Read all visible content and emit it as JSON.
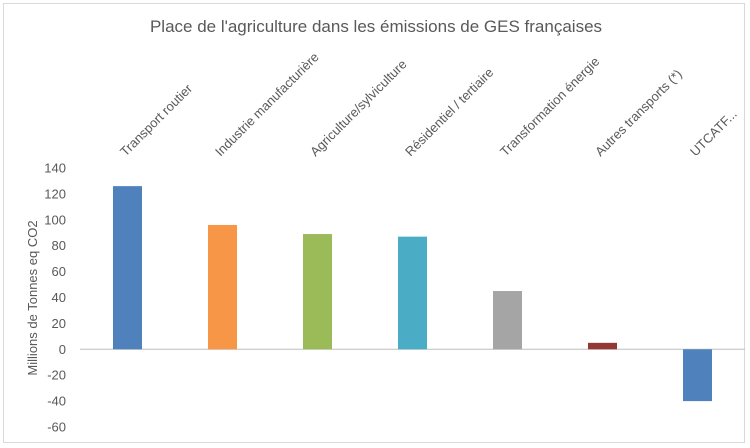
{
  "chart_data": {
    "type": "bar",
    "title": "Place de l'agriculture dans les émissions de GES françaises",
    "ylabel": "Millions de Tonnes eq CO2",
    "xlabel": "",
    "ylim": [
      -60,
      140
    ],
    "yticks": [
      140,
      120,
      100,
      80,
      60,
      40,
      20,
      0,
      -20,
      -40,
      -60
    ],
    "grid": false,
    "legend": "none",
    "categories": [
      "Transport routier",
      "Industrie manufacturière",
      "Agriculture/sylviculture",
      "Résidentiel / tertiaire",
      "Transformation énergie",
      "Autres transports (*)",
      "UTCATF..."
    ],
    "values": [
      126,
      96,
      89,
      87,
      45,
      5,
      -40
    ],
    "colors": [
      "#4f81bd",
      "#f79646",
      "#9bbb59",
      "#4bacc6",
      "#a5a5a5",
      "#953735",
      "#4f81bd"
    ]
  }
}
